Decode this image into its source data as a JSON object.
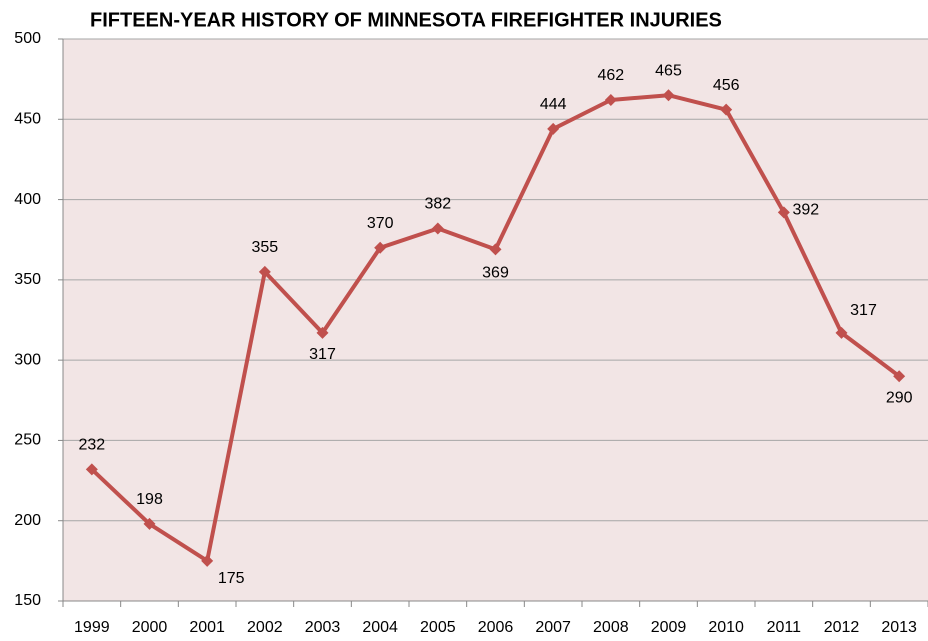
{
  "chart_data": {
    "type": "line",
    "title": "FIFTEEN-YEAR HISTORY OF MINNESOTA FIREFIGHTER INJURIES",
    "categories": [
      "1999",
      "2000",
      "2001",
      "2002",
      "2003",
      "2004",
      "2005",
      "2006",
      "2007",
      "2008",
      "2009",
      "2010",
      "2011",
      "2012",
      "2013"
    ],
    "values": [
      232,
      198,
      175,
      355,
      317,
      370,
      382,
      369,
      444,
      462,
      465,
      456,
      392,
      317,
      290
    ],
    "color": "#c0504d",
    "ylim": [
      150,
      500
    ],
    "yticks": [
      150,
      200,
      250,
      300,
      350,
      400,
      450,
      500
    ],
    "grid": true
  }
}
